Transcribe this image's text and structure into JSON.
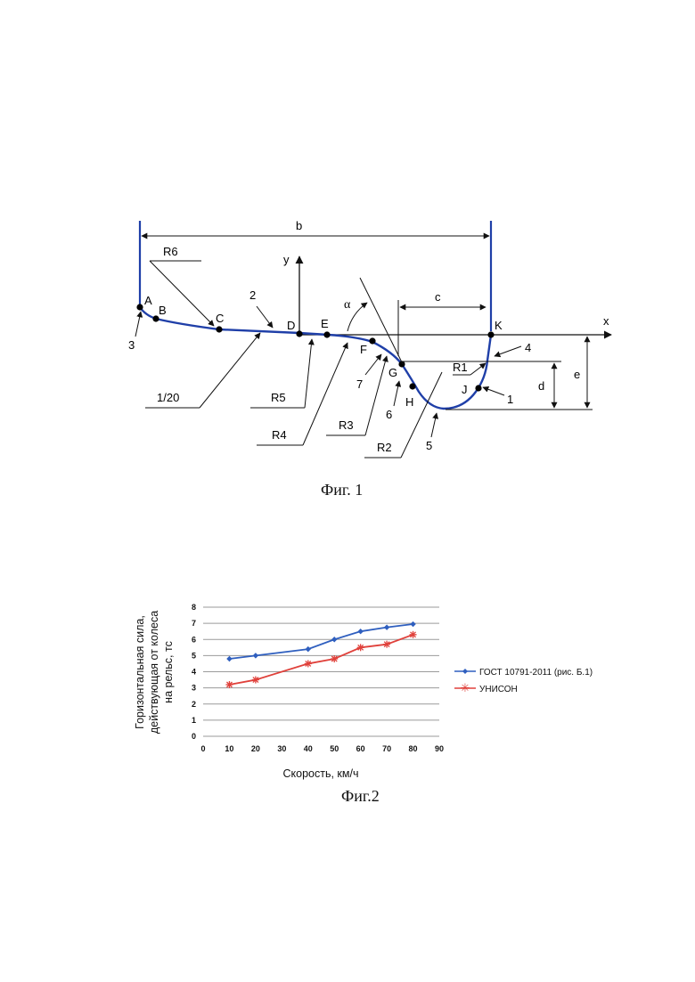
{
  "figure1": {
    "caption": "Фиг. 1",
    "dimension_labels": {
      "b": "b",
      "c": "c",
      "d": "d",
      "e": "e"
    },
    "axis_labels": {
      "x": "x",
      "y": "y"
    },
    "point_labels": {
      "A": "A",
      "B": "B",
      "C": "C",
      "D": "D",
      "E": "E",
      "F": "F",
      "G": "G",
      "H": "H",
      "J": "J",
      "K": "K"
    },
    "radius_labels": {
      "R1": "R1",
      "R2": "R2",
      "R3": "R3",
      "R4": "R4",
      "R5": "R5",
      "R6": "R6"
    },
    "angle_label": "α",
    "slope_label": "1/20",
    "number_labels": {
      "n1": "1",
      "n2": "2",
      "n3": "3",
      "n4": "4",
      "n5": "5",
      "n6": "6",
      "n7": "7"
    },
    "colors": {
      "profile": "#1f3fa8",
      "lines": "#111111"
    }
  },
  "figure2": {
    "caption": "Фиг.2",
    "chart_data": {
      "type": "line",
      "xlabel": "Скорость, км/ч",
      "ylabel_lines": [
        "Горизонтальная сила,",
        "действующая от колеса",
        "на рельс, тс"
      ],
      "xlim": [
        0,
        90
      ],
      "ylim": [
        0,
        8
      ],
      "x_ticks": [
        0,
        10,
        20,
        30,
        40,
        50,
        60,
        70,
        80,
        90
      ],
      "y_ticks": [
        0,
        1,
        2,
        3,
        4,
        5,
        6,
        7,
        8
      ],
      "grid": "horizontal",
      "legend_position": "right",
      "series": [
        {
          "name": "ГОСТ 10791-2011 (рис. Б.1)",
          "color": "#2f5fbf",
          "marker": "diamond",
          "x": [
            10,
            20,
            40,
            50,
            60,
            70,
            80
          ],
          "y": [
            4.8,
            5.0,
            5.4,
            6.0,
            6.5,
            6.75,
            6.95
          ]
        },
        {
          "name": "УНИСОН",
          "color": "#e0413b",
          "marker": "star",
          "x": [
            10,
            20,
            40,
            50,
            60,
            70,
            80
          ],
          "y": [
            3.2,
            3.5,
            4.5,
            4.8,
            5.5,
            5.7,
            6.3
          ]
        }
      ]
    }
  }
}
